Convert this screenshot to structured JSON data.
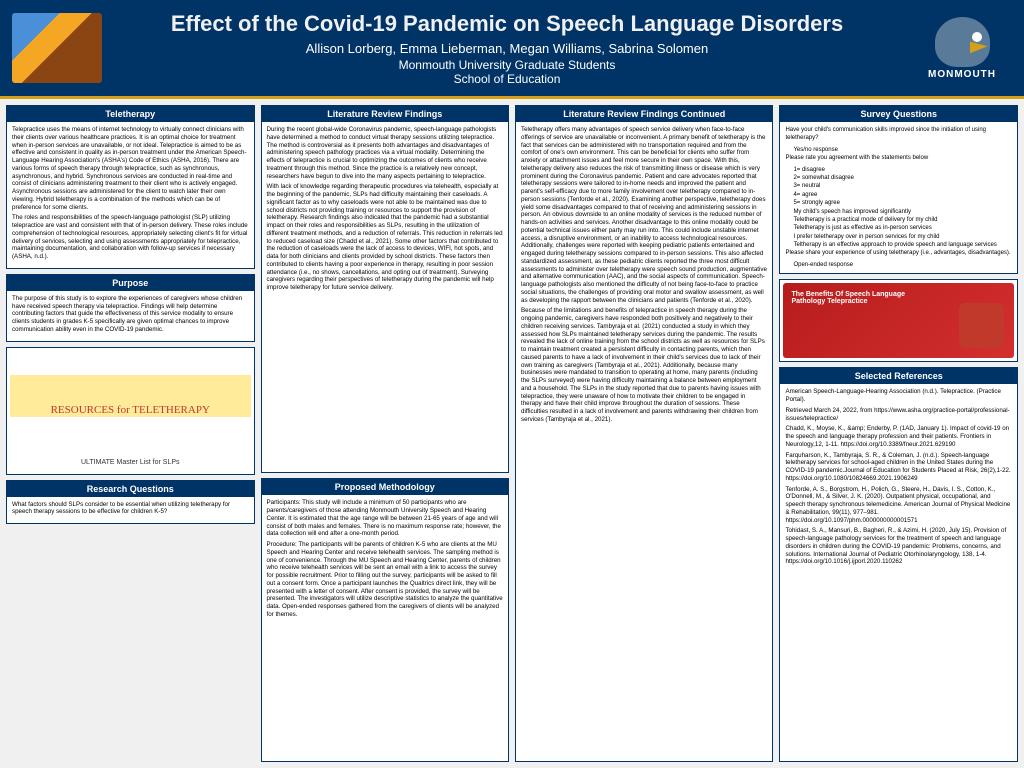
{
  "header": {
    "title": "Effect of the Covid-19 Pandemic on Speech Language Disorders",
    "authors": "Allison Lorberg, Emma Lieberman, Megan Williams, Sabrina Solomen",
    "affil1": "Monmouth University Graduate Students",
    "affil2": "School of Education",
    "logo_text": "MONMOUTH"
  },
  "colors": {
    "brand": "#003366",
    "accent": "#d4a017",
    "bg": "#f0f0f0"
  },
  "col1": {
    "teletherapy": {
      "h": "Teletherapy",
      "p1": "Telepractice uses the means of internet technology to virtually connect clinicians with their clients over various healthcare practices. It is an optimal choice for treatment when in-person services are unavailable, or not ideal. Telepractice is aimed to be as effective and consistent in quality as in-person treatment under the American Speech-Language Hearing Association's (ASHA's) Code of Ethics (ASHA, 2016). There are various forms of speech therapy through telepractice, such as synchronous, asynchronous, and hybrid. Synchronous services are conducted in real-time and consist of clinicians administering treatment to their client who is actively engaged. Asynchronous sessions are administered for the client to watch later their own viewing. Hybrid teletherapy is a combination of the methods which can be of preference for some clients.",
      "p2": "The roles and responsibilities of the speech-language pathologist (SLP) utilizing telepractice are vast and consistent with that of in-person delivery. These roles include comprehension of technological resources, appropriately selecting client's fit for virtual delivery of services, selecting and using assessments appropriately for telepractice, maintaining documentation, and collaboration with follow-up services if necessary (ASHA, n.d.)."
    },
    "purpose": {
      "h": "Purpose",
      "p1": "The purpose of this study is to explore the experiences of caregivers whose children have received speech therapy via telepractice. Findings will help determine contributing factors that guide the effectiveness of this service modality to ensure clients students in grades K-5 specifically are given optimal chances to improve communication ability even in the COVID-19 pandemic."
    },
    "img1_main": "RESOURCES for TELETHERAPY",
    "img1_sub": "ULTIMATE Master List for SLPs",
    "rq": {
      "h": "Research Questions",
      "p1": "What factors should SLPs consider to be essential when utilizing teletherapy for speech therapy sessions to be effective for children K-5?"
    }
  },
  "col2": {
    "lrf": {
      "h": "Literature Review Findings",
      "p1": "During the recent global-wide Coronavirus pandemic, speech-language pathologists have determined a method to conduct virtual therapy sessions utilizing telepractice. The method is controversial as it presents both advantages and disadvantages of administering speech pathology practices via a virtual modality. Determining the effects of telepractice is crucial to optimizing the outcomes of clients who receive treatment through this method. Since the practice is a relatively new concept, researchers have begun to dive into the many aspects pertaining to telepractice.",
      "p2": "With lack of knowledge regarding therapeutic procedures via telehealth, especially at the beginning of the pandemic, SLPs had difficulty maintaining their caseloads. A significant factor as to why caseloads were not able to be maintained was due to school districts not providing training or resources to support the provision of teletherapy. Research findings also indicated that the pandemic had a substantial impact on their roles and responsibilities as SLPs, resulting in the utilization of different treatment methods, and a reduction of referrals. This reduction in referrals led to reduced caseload size (Chadd et al., 2021). Some other factors that contributed to the reduction of caseloads were the lack of access to devices, WIFI, hot spots, and data for both clinicians and clients provided by school districts. These factors then contributed to clients having a poor experience in therapy, resulting in poor session attendance (i.e., no shows, cancellations, and opting out of treatment). Surveying caregivers regarding their perspectives of teletherapy during the pandemic will help improve teletherapy for future service delivery."
    },
    "pm": {
      "h": "Proposed Methodology",
      "p1": "Participants: This study will include a minimum of 50 participants who are parents/caregivers of those attending Monmouth University Speech and Hearing Center. It is estimated that the age range will be between 21-65 years of age and will consist of both males and females. There is no maximum response rate; however, the data collection will end after a one-month period.",
      "p2": "Procedure: The participants will be parents of children K-5 who are clients at the MU Speech and Hearing Center and receive telehealth services. The sampling method is one of convenience. Through the MU Speech and Hearing Center, parents of children who receive telehealth services will be sent an email with a link to access the survey for possible recruitment. Prior to filling out the survey, participants will be asked to fill out a consent form. Once a participant launches the Qualtrics direct link, they will be presented with a letter of consent. After consent is provided, the survey will be presented. The investigators will utilize descriptive statistics to analyze the quantitative data. Open-ended responses gathered from the caregivers of clients will be analyzed for themes."
    }
  },
  "col3": {
    "lrfc": {
      "h": "Literature Review Findings Continued",
      "p1": "Teletherapy offers many advantages of speech service delivery when face-to-face offerings of service are unavailable or inconvenient. A primary benefit of teletherapy is the fact that services can be administered with no transportation required and from the comfort of one's own environment. This can be beneficial for clients who suffer from anxiety or attachment issues and feel more secure in their own space. With this, teletherapy delivery also reduces the risk of transmitting illness or disease which is very prominent during the Coronavirus pandemic. Patient and care advocates reported that teletherapy sessions were tailored to in-home needs and improved the patient and parent's self-efficacy due to more family involvement over teletherapy compared to in-person sessions (Tenforde et al., 2020). Examining another perspective, teletherapy does yield some disadvantages compared to that of receiving and administering sessions in person. An obvious downside to an online modality of services is the reduced number of hands-on activities and services. Another disadvantage to this online modality could be potential technical issues either party may run into. This could include unstable internet access, a disruptive environment, or an inability to access technological resources. Additionally, challenges were reported with keeping pediatric patients entertained and engaged during teletherapy sessions compared to in-person sessions. This also affected standardized assessment, as these pediatric clients reported the three most difficult assessments to administer over teletherapy were speech sound production, augmentative and alternative communication (AAC), and the social aspects of communication. Speech-language pathologists also mentioned the difficulty of not being face-to-face to practice social situations, the challenges of providing oral motor and swallow assessment, as well as developing the rapport between the clinicians and patients (Tenforde et al., 2020).",
      "p2": "Because of the limitations and benefits of telepractice in speech therapy during the ongoing pandemic, caregivers have responded both positively and negatively to their children receiving services. Tambyraja et al. (2021) conducted a study in which they assessed how SLPs maintained teletherapy services during the pandemic. The results revealed the lack of online training from the school districts as well as resources for SLPs to maintain treatment created a persistent difficulty in contacting parents, which then caused parents to have a lack of involvement in their child's services due to lack of their own training as caregivers (Tambyraja et al., 2021). Additionally, because many businesses were mandated to transition to operating at home, many parents (including the SLPs surveyed) were having difficulty maintaining a balance between employment and a household. The SLPs in the study reported that due to parents having issues with telepractice, they were unaware of how to motivate their children to be engaged in therapy and have their child improve throughout the duration of sessions. These difficulties resulted in a lack of involvement and parents withdrawing their children from services (Tambyraja et al., 2021)."
    }
  },
  "col4": {
    "sq": {
      "h": "Survey Questions",
      "q1": "Have your child's communication skills improved since the initiation of using teletherapy?",
      "q1a": "Yes/no response",
      "q2": "Please rate you agreement with the statements below",
      "s1": "1= disagree",
      "s2": "2= somewhat disagree",
      "s3": "3= neutral",
      "s4": "4= agree",
      "s5": "5= strongly agree",
      "i1": "My child's speech has improved significantly",
      "i2": "Teletherapy is a practical mode of delivery for my child",
      "i3": "Teletherapy is just as effective as in-person services",
      "i4": "I prefer teletherapy over in person services for my child",
      "i5": "Teltherapy is an effective approach to provide speech and language services",
      "q3": "Please share your experience of using teletherapy (i.e., advantages, disadvantages).",
      "q3a": "Open-ended response"
    },
    "img2_text": "The Benefits Of Speech Language Pathology Telepractice",
    "refs": {
      "h": "Selected References",
      "r1": "American Speech-Language-Hearing Association (n.d.). Telepractice. (Practice Portal).",
      "r1b": "Retrieved March 24, 2022, from https://www.asha.org/practice-portal/professional-issues/telepractice/",
      "r2": "Chadd, K., Moyse, K., &amp; Enderby, P. (1AD, January 1). Impact of covid-19 on the speech and language therapy profession and their patients. Frontiers in Neurology,12, 1-11. https://doi.org/10.3389/fneur.2021.629190",
      "r3": "Farquharson, K., Tambyraja, S. R., & Coleman, J. (n.d.). Speech-language teletherapy services for school-aged children in the United States during the COVID-19 pandemic.Journal of Education for Students Placed at Risk, 26(2),1-22. https://doi.org/10.1080/10824669.2021.1906249",
      "r4": "Tenforde, A. S., Borgstrom, H., Polich, G., Steere, H., Davis, I. S., Cotton, K., O'Donnell, M., & Silver, J. K. (2020). Outpatient physical, occupational, and speech therapy synchronous telemedicine. American Journal of Physical Medicine & Rehabilitation, 99(11), 977–981. https://doi.org/10.1097/phm.0000000000001571",
      "r5": "Tohidast, S. A., Mansuri, B., Bagheri, R., & Azimi, H. (2020, July 15). Provision of speech-language pathology services for the treatment of speech and language disorders in children during the COVID-19 pandemic: Problems, concerns, and solutions. International Journal of Pediatric Otorhinolaryngology, 138, 1-4. https://doi.org/10.1016/j.ijporl.2020.110262"
    }
  }
}
